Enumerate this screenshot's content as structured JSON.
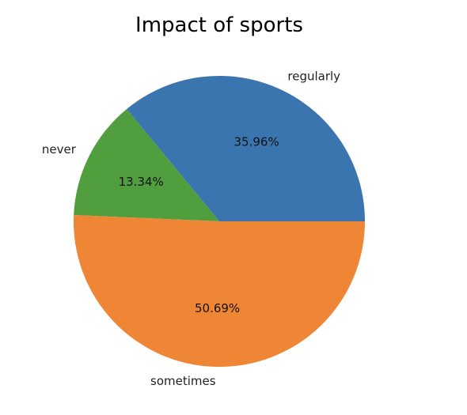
{
  "chart_data": {
    "type": "pie",
    "title": "Impact of sports",
    "labels": [
      "regularly",
      "never",
      "sometimes"
    ],
    "values": [
      35.96,
      13.34,
      50.69
    ],
    "percent_labels": [
      "35.96%",
      "13.34%",
      "50.69%"
    ],
    "colors": [
      "#3a75af",
      "#519e3e",
      "#ef8636"
    ],
    "start_angle_deg": 0,
    "direction": "counterclockwise"
  }
}
